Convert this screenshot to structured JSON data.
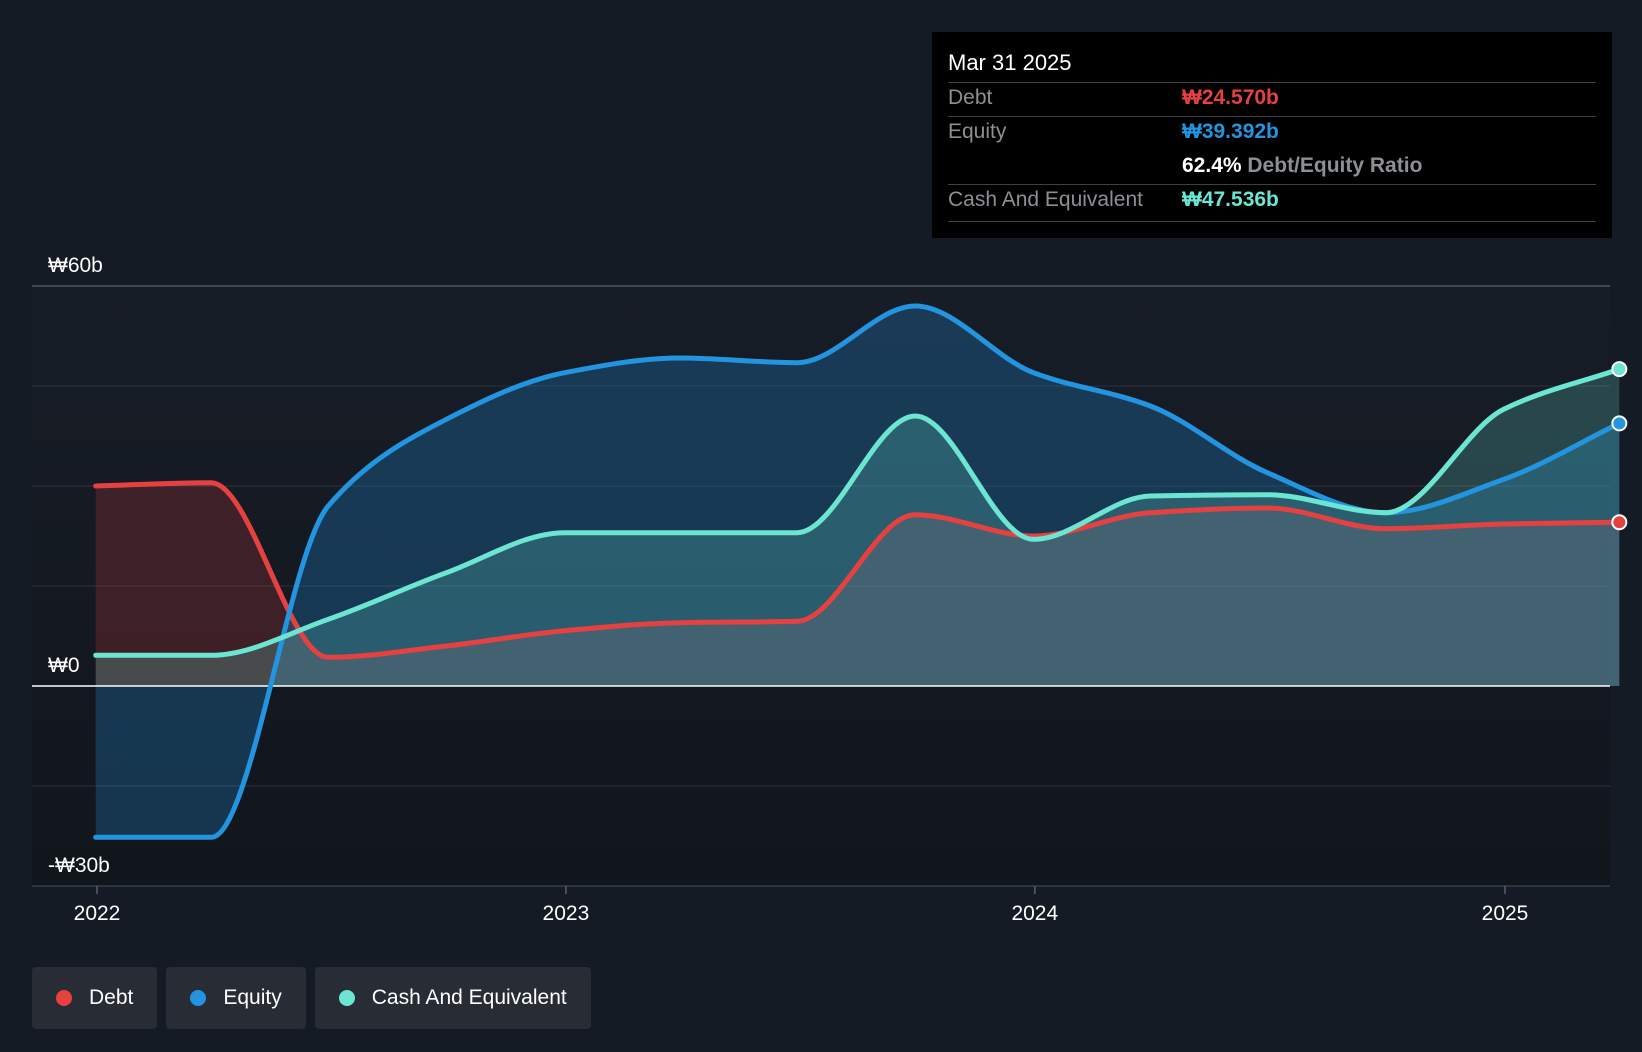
{
  "tooltip": {
    "date": "Mar 31 2025",
    "debt_label": "Debt",
    "debt_value": "₩24.570b",
    "equity_label": "Equity",
    "equity_value": "₩39.392b",
    "ratio_value": "62.4%",
    "ratio_label": "Debt/Equity Ratio",
    "cash_label": "Cash And Equivalent",
    "cash_value": "₩47.536b"
  },
  "legend": [
    {
      "label": "Debt",
      "color": "#e64141"
    },
    {
      "label": "Equity",
      "color": "#2394df"
    },
    {
      "label": "Cash And Equivalent",
      "color": "#6ce5d2"
    }
  ],
  "chart_data": {
    "type": "area",
    "y_unit_prefix": "₩",
    "ylim": [
      -30,
      60
    ],
    "xlim": [
      "2021-11-19",
      "2025-04-15"
    ],
    "x_ticks": [
      {
        "date": "2022-01-01",
        "label": "2022"
      },
      {
        "date": "2023-01-01",
        "label": "2023"
      },
      {
        "date": "2024-01-01",
        "label": "2024"
      },
      {
        "date": "2025-01-01",
        "label": "2025"
      }
    ],
    "y_ticks": [
      {
        "value": 60,
        "label": "₩60b"
      },
      {
        "value": 0,
        "label": "₩0"
      },
      {
        "value": -30,
        "label": "-₩30b"
      }
    ],
    "series": [
      {
        "name": "Debt",
        "color": "#e64141",
        "points": [
          [
            "2021-12-31",
            30.0
          ],
          [
            "2022-03-31",
            30.5
          ],
          [
            "2022-06-30",
            4.3
          ],
          [
            "2022-09-30",
            6.0
          ],
          [
            "2022-12-31",
            8.3
          ],
          [
            "2023-03-31",
            9.5
          ],
          [
            "2023-06-30",
            9.7
          ],
          [
            "2023-09-30",
            25.7
          ],
          [
            "2023-12-31",
            22.5
          ],
          [
            "2024-03-31",
            26.0
          ],
          [
            "2024-06-30",
            26.7
          ],
          [
            "2024-09-30",
            23.6
          ],
          [
            "2024-12-31",
            24.3
          ],
          [
            "2025-03-31",
            24.57
          ]
        ]
      },
      {
        "name": "Equity",
        "color": "#2394df",
        "points": [
          [
            "2021-12-31",
            -22.7
          ],
          [
            "2022-03-31",
            -22.7
          ],
          [
            "2022-06-30",
            27.0
          ],
          [
            "2022-09-30",
            40.0
          ],
          [
            "2022-12-31",
            47.0
          ],
          [
            "2023-03-31",
            49.2
          ],
          [
            "2023-06-30",
            48.5
          ],
          [
            "2023-09-30",
            57.0
          ],
          [
            "2023-12-31",
            47.0
          ],
          [
            "2024-03-31",
            42.0
          ],
          [
            "2024-06-30",
            32.0
          ],
          [
            "2024-09-30",
            26.0
          ],
          [
            "2024-12-31",
            31.0
          ],
          [
            "2025-03-31",
            39.392
          ]
        ]
      },
      {
        "name": "Cash And Equivalent",
        "color": "#6ce5d2",
        "points": [
          [
            "2021-12-31",
            4.6
          ],
          [
            "2022-03-31",
            4.6
          ],
          [
            "2022-06-30",
            10.0
          ],
          [
            "2022-09-30",
            17.0
          ],
          [
            "2022-12-31",
            23.0
          ],
          [
            "2023-03-31",
            23.0
          ],
          [
            "2023-06-30",
            23.0
          ],
          [
            "2023-09-30",
            40.5
          ],
          [
            "2023-12-31",
            22.0
          ],
          [
            "2024-03-31",
            28.5
          ],
          [
            "2024-06-30",
            28.7
          ],
          [
            "2024-09-30",
            26.0
          ],
          [
            "2024-12-31",
            41.5
          ],
          [
            "2025-03-31",
            47.536
          ]
        ]
      }
    ]
  }
}
